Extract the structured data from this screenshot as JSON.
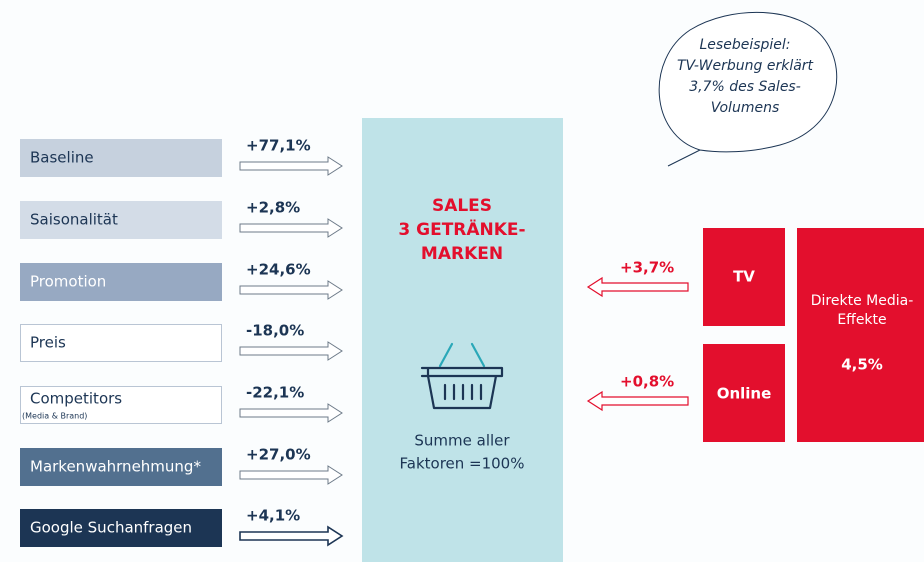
{
  "factors": [
    {
      "label": "Baseline",
      "value": "+77,1%"
    },
    {
      "label": "Saisonalität",
      "value": "+2,8%"
    },
    {
      "label": "Promotion",
      "value": "+24,6%"
    },
    {
      "label": "Preis",
      "value": "-18,0%"
    },
    {
      "label": "Competitors",
      "note": "(Media & Brand)",
      "value": "-22,1%"
    },
    {
      "label": "Markenwahrnehmung*",
      "value": "+27,0%"
    },
    {
      "label": "Google Suchanfragen",
      "value": "+4,1%"
    }
  ],
  "center": {
    "title_lines": [
      "SALES",
      "3 GETRÄNKE-",
      "MARKEN"
    ],
    "sum_lines": [
      "Summe aller",
      "Faktoren =100%"
    ]
  },
  "media": [
    {
      "label": "TV",
      "value": "+3,7%"
    },
    {
      "label": "Online",
      "value": "+0,8%"
    }
  ],
  "direct": {
    "label_lines": [
      "Direkte Media-",
      "Effekte"
    ],
    "value": "4,5%"
  },
  "callout": {
    "lines": [
      "Lesebeispiel:",
      "TV-Werbung erklärt",
      "3,7% des Sales-",
      "Volumens"
    ]
  }
}
